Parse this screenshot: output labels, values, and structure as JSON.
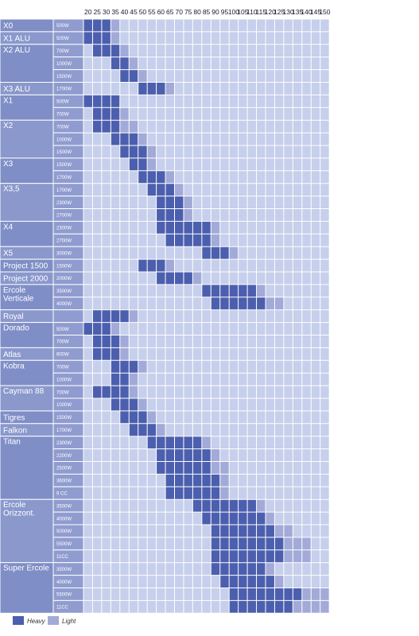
{
  "chart_data": {
    "type": "heatmap",
    "x_ticks": [
      20,
      25,
      30,
      35,
      40,
      45,
      50,
      55,
      60,
      65,
      70,
      75,
      80,
      85,
      90,
      95,
      100,
      105,
      110,
      115,
      120,
      125,
      130,
      135,
      140,
      145,
      150
    ],
    "legend": [
      {
        "key": "heavy",
        "label": "Heavy",
        "color": "#4c5fae"
      },
      {
        "key": "light",
        "label": "Light",
        "color": "#a2aad8"
      }
    ],
    "background_color": "#c6cfeb",
    "groups": [
      {
        "name": [
          "X0"
        ],
        "rows": [
          {
            "w": "500W",
            "heavy": [
              20,
              30
            ],
            "light": [
              35
            ]
          }
        ]
      },
      {
        "name": [
          "X1 ALU"
        ],
        "rows": [
          {
            "w": "500W",
            "heavy": [
              20,
              30
            ],
            "light": [
              35
            ]
          }
        ]
      },
      {
        "name": [
          "X2 ALU"
        ],
        "rows": [
          {
            "w": "700W",
            "heavy": [
              25,
              35
            ],
            "light": [
              40
            ]
          },
          {
            "w": "1000W",
            "heavy": [
              35,
              40
            ],
            "light": [
              45
            ]
          },
          {
            "w": "1500W",
            "heavy": [
              40,
              45
            ],
            "light": [
              50
            ]
          }
        ]
      },
      {
        "name": [
          "X3 ALU"
        ],
        "rows": [
          {
            "w": "1700W",
            "heavy": [
              50,
              60
            ],
            "light": [
              65
            ]
          }
        ]
      },
      {
        "name": [
          "X1"
        ],
        "rows": [
          {
            "w": "500W",
            "heavy": [
              20,
              35
            ],
            "light": []
          },
          {
            "w": "700W",
            "heavy": [
              25,
              35
            ],
            "light": [
              40
            ]
          }
        ]
      },
      {
        "name": [
          "X2"
        ],
        "rows": [
          {
            "w": "700W",
            "heavy": [
              25,
              35
            ],
            "light": [
              40,
              45
            ]
          },
          {
            "w": "1000W",
            "heavy": [
              35,
              45
            ],
            "light": [
              50
            ]
          },
          {
            "w": "1500W",
            "heavy": [
              40,
              50
            ],
            "light": [
              55
            ]
          }
        ]
      },
      {
        "name": [
          "X3"
        ],
        "rows": [
          {
            "w": "1500W",
            "heavy": [
              45,
              50
            ],
            "light": [
              55
            ]
          },
          {
            "w": "1700W",
            "heavy": [
              50,
              60
            ],
            "light": [
              65
            ]
          }
        ]
      },
      {
        "name": [
          "X3,5"
        ],
        "rows": [
          {
            "w": "1700W",
            "heavy": [
              55,
              65
            ],
            "light": [
              70
            ]
          },
          {
            "w": "2300W",
            "heavy": [
              60,
              70
            ],
            "light": [
              75
            ]
          },
          {
            "w": "2700W",
            "heavy": [
              60,
              70
            ],
            "light": [
              75
            ]
          }
        ]
      },
      {
        "name": [
          "X4"
        ],
        "rows": [
          {
            "w": "2300W",
            "heavy": [
              60,
              85
            ],
            "light": [
              90
            ]
          },
          {
            "w": "2700W",
            "heavy": [
              65,
              85
            ],
            "light": [
              90
            ]
          }
        ]
      },
      {
        "name": [
          "X5"
        ],
        "rows": [
          {
            "w": "3000W",
            "heavy": [
              85,
              95
            ],
            "light": [
              100
            ]
          }
        ]
      },
      {
        "name": [
          "Project 1500"
        ],
        "rows": [
          {
            "w": "1500W",
            "heavy": [
              50,
              60
            ],
            "light": [
              65
            ]
          }
        ]
      },
      {
        "name": [
          "Project 2000"
        ],
        "rows": [
          {
            "w": "2000W",
            "heavy": [
              60,
              75
            ],
            "light": [
              80
            ]
          }
        ]
      },
      {
        "name": [
          "Ercole",
          "Verticale"
        ],
        "rows": [
          {
            "w": "3500W",
            "heavy": [
              85,
              110
            ],
            "light": [
              115
            ]
          },
          {
            "w": "4000W",
            "heavy": [
              90,
              115
            ],
            "light": [
              120,
              125
            ]
          }
        ]
      },
      {
        "name": [
          "Royal"
        ],
        "rows": [
          {
            "w": "",
            "heavy": [
              25,
              40
            ],
            "light": [
              45
            ]
          }
        ]
      },
      {
        "name": [
          "Dorado"
        ],
        "rows": [
          {
            "w": "500W",
            "heavy": [
              20,
              30
            ],
            "light": [
              35
            ]
          },
          {
            "w": "700W",
            "heavy": [
              25,
              35
            ],
            "light": [
              40
            ]
          }
        ]
      },
      {
        "name": [
          "Atlas"
        ],
        "rows": [
          {
            "w": "600W",
            "heavy": [
              25,
              35
            ],
            "light": [
              40
            ]
          }
        ]
      },
      {
        "name": [
          "Kobra"
        ],
        "rows": [
          {
            "w": "700W",
            "heavy": [
              35,
              45
            ],
            "light": [
              50
            ]
          },
          {
            "w": "1000W",
            "heavy": [
              35,
              40
            ],
            "light": [
              45
            ]
          }
        ]
      },
      {
        "name": [
          "Cayman 88"
        ],
        "rows": [
          {
            "w": "700W",
            "heavy": [
              25,
              40
            ],
            "light": [
              45
            ]
          },
          {
            "w": "1000W",
            "heavy": [
              35,
              45
            ],
            "light": [
              50
            ]
          }
        ]
      },
      {
        "name": [
          "Tigres"
        ],
        "rows": [
          {
            "w": "1500W",
            "heavy": [
              40,
              50
            ],
            "light": [
              55
            ]
          }
        ]
      },
      {
        "name": [
          "Falkon"
        ],
        "rows": [
          {
            "w": "1700W",
            "heavy": [
              45,
              55
            ],
            "light": [
              60
            ]
          }
        ]
      },
      {
        "name": [
          "Titan"
        ],
        "rows": [
          {
            "w": "2300W",
            "heavy": [
              55,
              80
            ],
            "light": [
              85
            ]
          },
          {
            "w": "2200W",
            "heavy": [
              60,
              85
            ],
            "light": [
              90
            ]
          },
          {
            "w": "2500W",
            "heavy": [
              60,
              85
            ],
            "light": [
              90,
              95
            ]
          },
          {
            "w": "3600W",
            "heavy": [
              65,
              90
            ],
            "light": [
              95
            ]
          },
          {
            "w": "9 CC",
            "heavy": [
              65,
              90
            ],
            "light": [
              95
            ]
          }
        ]
      },
      {
        "name": [
          "Ercole",
          "Orizzont."
        ],
        "rows": [
          {
            "w": "3500W",
            "heavy": [
              80,
              110
            ],
            "light": [
              115
            ]
          },
          {
            "w": "4000W",
            "heavy": [
              85,
              115
            ],
            "light": [
              120
            ]
          },
          {
            "w": "5000W",
            "heavy": [
              90,
              120
            ],
            "light": [
              125,
              130
            ]
          },
          {
            "w": "5500W",
            "heavy": [
              90,
              125
            ],
            "light": [
              130,
              140
            ]
          },
          {
            "w": "11CC",
            "heavy": [
              90,
              125
            ],
            "light": [
              130,
              140
            ]
          }
        ]
      },
      {
        "name": [
          "Super Ercole"
        ],
        "rows": [
          {
            "w": "3500W",
            "heavy": [
              90,
              115
            ],
            "light": [
              120
            ]
          },
          {
            "w": "4000W",
            "heavy": [
              95,
              120
            ],
            "light": [
              125
            ]
          },
          {
            "w": "5500W",
            "heavy": [
              100,
              135
            ],
            "light": [
              140,
              150
            ]
          },
          {
            "w": "11CC",
            "heavy": [
              100,
              130
            ],
            "light": [
              135,
              150
            ]
          }
        ]
      }
    ]
  }
}
